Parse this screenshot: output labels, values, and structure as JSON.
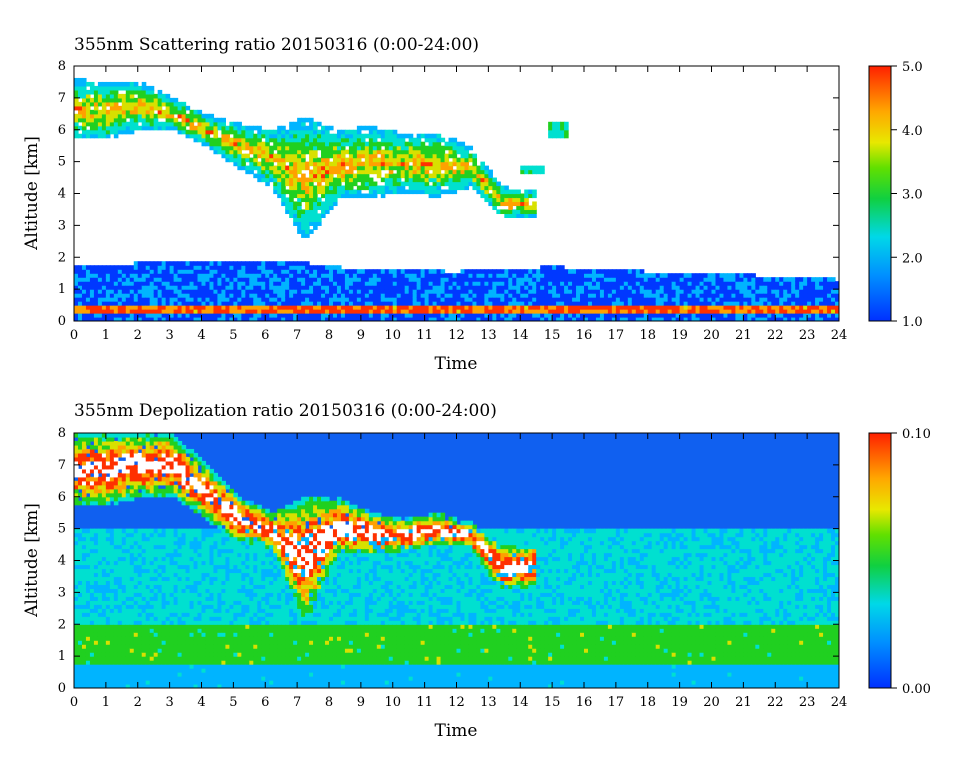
{
  "chart_data": [
    {
      "type": "heatmap",
      "title": "355nm Scattering ratio  20150316 (0:00-24:00)",
      "xlabel": "Time",
      "ylabel": "Altitude [km]",
      "xlim": [
        0,
        24
      ],
      "ylim": [
        0,
        8
      ],
      "x_ticks": [
        "0",
        "1",
        "2",
        "3",
        "4",
        "5",
        "6",
        "7",
        "8",
        "9",
        "10",
        "11",
        "12",
        "13",
        "14",
        "15",
        "16",
        "17",
        "18",
        "19",
        "20",
        "21",
        "22",
        "23",
        "24"
      ],
      "y_ticks": [
        "0",
        "1",
        "2",
        "3",
        "4",
        "5",
        "6",
        "7",
        "8"
      ],
      "colorbar": {
        "min": 1.0,
        "max": 5.0,
        "ticks": [
          "1.0",
          "2.0",
          "3.0",
          "4.0",
          "5.0"
        ]
      },
      "colors": [
        "#0038ff",
        "#00b4ff",
        "#00e0d0",
        "#20d020",
        "#d8e000",
        "#ffa000",
        "#ff3000"
      ],
      "background": "#ffffff",
      "features": [
        {
          "name": "boundary-layer",
          "t_start": 0,
          "t_end": 24,
          "top_km": [
            1.8,
            1.8,
            1.85,
            1.9,
            1.9,
            1.8,
            1.6,
            1.6,
            1.55,
            1.65,
            1.7,
            1.65,
            1.55,
            1.5,
            1.45,
            1.4,
            1.3
          ],
          "value": 1.5
        },
        {
          "name": "surface-layer",
          "t_start": 0,
          "t_end": 24,
          "bottom_km": 0.25,
          "top_km": 0.45,
          "value": 4.5
        },
        {
          "name": "cirrus-main",
          "t_start": 0,
          "t_end": 14.5,
          "base_km": [
            5.7,
            5.7,
            6.0,
            6.0,
            5.5,
            4.8,
            4.2,
            2.5,
            3.8,
            3.9,
            4.0,
            3.9,
            4.2,
            3.2,
            3.3
          ],
          "top_km": [
            7.6,
            7.5,
            7.5,
            7.0,
            6.5,
            6.2,
            6.0,
            6.4,
            6.0,
            6.1,
            5.9,
            5.9,
            5.5,
            4.2,
            4.1
          ],
          "value": 3.5
        },
        {
          "name": "cloud-fragment",
          "t_start": 14.9,
          "t_end": 15.5,
          "bottom_km": 5.8,
          "top_km": 6.3,
          "value": 2.5
        },
        {
          "name": "cloud-fragment",
          "t_start": 14.0,
          "t_end": 14.8,
          "bottom_km": 4.6,
          "top_km": 4.9,
          "value": 2.5
        }
      ]
    },
    {
      "type": "heatmap",
      "title": "355nm Depolization ratio  20150316 (0:00-24:00)",
      "xlabel": "Time",
      "ylabel": "Altitude [km]",
      "xlim": [
        0,
        24
      ],
      "ylim": [
        0,
        8
      ],
      "x_ticks": [
        "0",
        "1",
        "2",
        "3",
        "4",
        "5",
        "6",
        "7",
        "8",
        "9",
        "10",
        "11",
        "12",
        "13",
        "14",
        "15",
        "16",
        "17",
        "18",
        "19",
        "20",
        "21",
        "22",
        "23",
        "24"
      ],
      "y_ticks": [
        "0",
        "1",
        "2",
        "3",
        "4",
        "5",
        "6",
        "7",
        "8"
      ],
      "colorbar": {
        "min": 0.0,
        "max": 0.1,
        "ticks": [
          "0.00",
          "0.10"
        ]
      },
      "colors": [
        "#0038ff",
        "#00b4ff",
        "#00e0d0",
        "#20d020",
        "#d8e000",
        "#ffa000",
        "#ff3000"
      ],
      "background": "#1060f0",
      "features": [
        {
          "name": "aerosol-band",
          "t_start": 0,
          "t_end": 24,
          "bottom_km": 0.8,
          "top_km": 2.0,
          "value": 0.05
        },
        {
          "name": "lower-layer",
          "t_start": 0,
          "t_end": 24,
          "bottom_km": 0.0,
          "top_km": 0.8,
          "value": 0.025
        },
        {
          "name": "mid-layer",
          "t_start": 0,
          "t_end": 24,
          "bottom_km": 2.0,
          "top_km": 5.0,
          "value": 0.03
        },
        {
          "name": "cirrus-main",
          "t_start": 0,
          "t_end": 14.5,
          "base_km": [
            5.7,
            5.7,
            6.0,
            6.0,
            5.3,
            4.6,
            4.4,
            2.0,
            4.2,
            4.2,
            4.3,
            4.5,
            4.4,
            3.0,
            3.2
          ],
          "top_km": [
            8.0,
            8.0,
            8.0,
            8.0,
            7.0,
            6.0,
            5.5,
            6.0,
            6.0,
            5.5,
            5.3,
            5.5,
            5.2,
            4.5,
            4.5
          ],
          "value": 0.1
        }
      ]
    }
  ]
}
